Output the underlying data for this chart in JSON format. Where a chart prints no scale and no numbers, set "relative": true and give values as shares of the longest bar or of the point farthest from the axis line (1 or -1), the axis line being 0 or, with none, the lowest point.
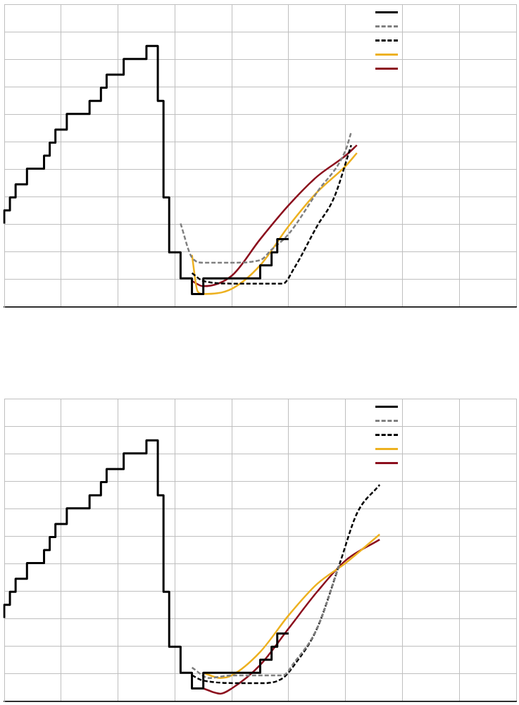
{
  "chart_data": [
    {
      "type": "line",
      "relative": true,
      "grid": true,
      "tick_labels": false,
      "categories": [
        null,
        null,
        null,
        null,
        null,
        null,
        null,
        null,
        null,
        null,
        null,
        null,
        null,
        null,
        null,
        null,
        null,
        null,
        null,
        null,
        null,
        null,
        null,
        null,
        null,
        null,
        null,
        null,
        null,
        null,
        null,
        null,
        null,
        null,
        null,
        null,
        null,
        null,
        null,
        null,
        null,
        null,
        null,
        null,
        null,
        null,
        null,
        null,
        null,
        null,
        null,
        null,
        null,
        null,
        null,
        null,
        null,
        null,
        null,
        null,
        null,
        null,
        null,
        null,
        null,
        null,
        null,
        null,
        null,
        null,
        null,
        null,
        null,
        null,
        null,
        null,
        null,
        null,
        null,
        null,
        null,
        null,
        null,
        null,
        null,
        null,
        null,
        null,
        null,
        null,
        null
      ],
      "series": [
        {
          "type": "step",
          "color": "#000000",
          "line_style": "solid",
          "values": [
            0.32,
            0.37,
            0.42,
            null,
            0.47,
            null,
            null,
            0.53,
            0.58,
            0.63,
            null,
            0.68,
            null,
            null,
            null,
            0.74,
            null,
            0.79,
            0.84,
            null,
            null,
            0.89,
            null,
            null,
            null,
            0.95,
            null,
            1,
            0.79,
            0.42,
            null,
            0.21,
            null,
            0.11,
            null,
            0.05,
            null,
            null,
            null,
            null,
            null,
            null,
            null,
            null,
            null,
            0.11,
            null,
            0.16,
            0.21,
            null,
            0.26,
            null,
            null,
            null,
            null,
            null,
            null,
            null,
            null,
            null,
            null,
            null,
            null,
            null,
            null,
            null,
            null,
            null,
            null,
            null,
            null,
            null,
            null,
            null,
            null,
            null,
            null,
            null,
            null,
            null,
            null,
            null,
            null,
            null,
            null,
            null,
            null,
            null,
            null,
            null,
            null
          ]
        },
        {
          "type": "line",
          "color": "#808080",
          "line_style": "dashed",
          "values": [
            null,
            null,
            null,
            null,
            null,
            null,
            null,
            null,
            null,
            null,
            null,
            null,
            null,
            null,
            null,
            null,
            null,
            null,
            null,
            null,
            null,
            null,
            null,
            null,
            null,
            null,
            null,
            null,
            null,
            null,
            null,
            0.32,
            null,
            0.19,
            null,
            0.17,
            null,
            null,
            null,
            null,
            0.17,
            null,
            null,
            null,
            null,
            0.18,
            null,
            0.22,
            null,
            null,
            0.28,
            null,
            null,
            null,
            null,
            0.44,
            null,
            null,
            null,
            null,
            0.6,
            0.67,
            null,
            null,
            null,
            null,
            null,
            null,
            null,
            null,
            null,
            null,
            null,
            null,
            null,
            null,
            null,
            null,
            null,
            null,
            null,
            null,
            null,
            null,
            null,
            null,
            null,
            null,
            null,
            null,
            null
          ]
        },
        {
          "type": "line",
          "color": "#000000",
          "line_style": "dashed",
          "values": [
            null,
            null,
            null,
            null,
            null,
            null,
            null,
            null,
            null,
            null,
            null,
            null,
            null,
            null,
            null,
            null,
            null,
            null,
            null,
            null,
            null,
            null,
            null,
            null,
            null,
            null,
            null,
            null,
            null,
            null,
            null,
            null,
            null,
            0.13,
            null,
            0.1,
            null,
            null,
            null,
            null,
            0.09,
            null,
            null,
            null,
            null,
            null,
            null,
            null,
            null,
            0.09,
            null,
            0.15,
            null,
            null,
            null,
            0.31,
            null,
            null,
            0.42,
            null,
            null,
            0.62,
            null,
            null,
            null,
            null,
            null,
            null,
            null,
            null,
            null,
            null,
            null,
            null,
            null,
            null,
            null,
            null,
            null,
            null,
            null,
            null,
            null,
            null,
            null,
            null,
            null,
            null,
            null,
            null,
            null
          ]
        },
        {
          "type": "line",
          "color": "#edb120",
          "line_style": "solid",
          "values": [
            null,
            null,
            null,
            null,
            null,
            null,
            null,
            null,
            null,
            null,
            null,
            null,
            null,
            null,
            null,
            null,
            null,
            null,
            null,
            null,
            null,
            null,
            null,
            null,
            null,
            null,
            null,
            null,
            null,
            null,
            null,
            null,
            null,
            0.2,
            0.06,
            0.05,
            null,
            null,
            null,
            null,
            0.07,
            null,
            null,
            null,
            null,
            0.16,
            null,
            null,
            null,
            null,
            0.31,
            null,
            null,
            null,
            null,
            0.44,
            null,
            null,
            null,
            null,
            0.54,
            null,
            0.59,
            null,
            null,
            null,
            null,
            null,
            null,
            null,
            null,
            null,
            null,
            null,
            null,
            null,
            null,
            null,
            null,
            null,
            null,
            null,
            null,
            null,
            null,
            null,
            null,
            null,
            null,
            null,
            null
          ]
        },
        {
          "type": "line",
          "color": "#8c0f1e",
          "line_style": "solid",
          "values": [
            null,
            null,
            null,
            null,
            null,
            null,
            null,
            null,
            null,
            null,
            null,
            null,
            null,
            null,
            null,
            null,
            null,
            null,
            null,
            null,
            null,
            null,
            null,
            null,
            null,
            null,
            null,
            null,
            null,
            null,
            null,
            null,
            null,
            0.1,
            null,
            0.08,
            null,
            null,
            null,
            null,
            0.12,
            null,
            null,
            null,
            null,
            0.26,
            null,
            null,
            null,
            null,
            0.39,
            null,
            null,
            null,
            null,
            0.5,
            null,
            null,
            null,
            null,
            0.58,
            null,
            0.62,
            null,
            null,
            null,
            null,
            null,
            null,
            null,
            null,
            null,
            null,
            null,
            null,
            null,
            null,
            null,
            null,
            null,
            null,
            null,
            null,
            null,
            null,
            null,
            null,
            null,
            null,
            null,
            null
          ]
        }
      ]
    },
    {
      "type": "line",
      "relative": true,
      "grid": true,
      "tick_labels": false,
      "categories": [
        null,
        null,
        null,
        null,
        null,
        null,
        null,
        null,
        null,
        null,
        null,
        null,
        null,
        null,
        null,
        null,
        null,
        null,
        null,
        null,
        null,
        null,
        null,
        null,
        null,
        null,
        null,
        null,
        null,
        null,
        null,
        null,
        null,
        null,
        null,
        null,
        null,
        null,
        null,
        null,
        null,
        null,
        null,
        null,
        null,
        null,
        null,
        null,
        null,
        null,
        null,
        null,
        null,
        null,
        null,
        null,
        null,
        null,
        null,
        null,
        null,
        null,
        null,
        null,
        null,
        null,
        null,
        null,
        null,
        null,
        null,
        null,
        null,
        null,
        null,
        null,
        null,
        null,
        null,
        null,
        null,
        null,
        null,
        null,
        null,
        null,
        null,
        null,
        null,
        null,
        null
      ],
      "series": [
        {
          "type": "step",
          "color": "#000000",
          "line_style": "solid",
          "values": [
            0.32,
            0.37,
            0.42,
            null,
            0.47,
            null,
            null,
            0.53,
            0.58,
            0.63,
            null,
            0.68,
            null,
            null,
            null,
            0.74,
            null,
            0.79,
            0.84,
            null,
            null,
            0.89,
            null,
            null,
            null,
            0.95,
            null,
            1,
            0.79,
            0.42,
            null,
            0.21,
            null,
            0.11,
            null,
            0.05,
            null,
            null,
            null,
            null,
            null,
            null,
            null,
            null,
            null,
            0.11,
            null,
            0.16,
            0.21,
            null,
            0.26,
            null,
            null,
            null,
            null,
            null,
            null,
            null,
            null,
            null,
            null,
            null,
            null,
            null,
            null,
            null,
            null,
            null,
            null,
            null,
            null,
            null,
            null,
            null,
            null,
            null,
            null,
            null,
            null,
            null,
            null,
            null,
            null,
            null,
            null,
            null,
            null,
            null,
            null,
            null,
            null
          ]
        },
        {
          "type": "line",
          "color": "#808080",
          "line_style": "dashed",
          "values": [
            null,
            null,
            null,
            null,
            null,
            null,
            null,
            null,
            null,
            null,
            null,
            null,
            null,
            null,
            null,
            null,
            null,
            null,
            null,
            null,
            null,
            null,
            null,
            null,
            null,
            null,
            null,
            null,
            null,
            null,
            null,
            null,
            null,
            0.13,
            null,
            null,
            0.09,
            null,
            null,
            null,
            0.1,
            null,
            null,
            null,
            null,
            null,
            null,
            null,
            null,
            0.1,
            null,
            0.15,
            null,
            null,
            null,
            0.28,
            null,
            null,
            null,
            0.53,
            null,
            null,
            null,
            null,
            null,
            null,
            null,
            null,
            null,
            null,
            null,
            null,
            null,
            null,
            null,
            null,
            null,
            null,
            null,
            null,
            null,
            null,
            null,
            null,
            null,
            null,
            null,
            null,
            null,
            null,
            null
          ]
        },
        {
          "type": "line",
          "color": "#000000",
          "line_style": "dashed",
          "values": [
            null,
            null,
            null,
            null,
            null,
            null,
            null,
            null,
            null,
            null,
            null,
            null,
            null,
            null,
            null,
            null,
            null,
            null,
            null,
            null,
            null,
            null,
            null,
            null,
            null,
            null,
            null,
            null,
            null,
            null,
            null,
            null,
            null,
            0.1,
            null,
            0.08,
            null,
            null,
            null,
            null,
            null,
            null,
            0.07,
            null,
            null,
            0.07,
            null,
            null,
            null,
            0.09,
            null,
            0.14,
            null,
            null,
            null,
            0.28,
            null,
            null,
            null,
            0.53,
            null,
            null,
            0.72,
            null,
            null,
            null,
            0.83,
            null,
            null,
            null,
            null,
            null,
            null,
            null,
            null,
            null,
            null,
            null,
            null,
            null,
            null,
            null,
            null,
            null,
            null,
            null,
            null,
            null,
            null,
            null,
            null
          ]
        },
        {
          "type": "line",
          "color": "#edb120",
          "line_style": "solid",
          "values": [
            null,
            null,
            null,
            null,
            null,
            null,
            null,
            null,
            null,
            null,
            null,
            null,
            null,
            null,
            null,
            null,
            null,
            null,
            null,
            null,
            null,
            null,
            null,
            null,
            null,
            null,
            null,
            null,
            null,
            null,
            null,
            null,
            null,
            null,
            null,
            0.11,
            null,
            null,
            0.09,
            null,
            0.1,
            null,
            null,
            null,
            null,
            0.19,
            null,
            null,
            null,
            null,
            0.33,
            null,
            null,
            null,
            null,
            0.45,
            null,
            null,
            null,
            null,
            0.53,
            null,
            null,
            null,
            null,
            null,
            0.64,
            null,
            null,
            null,
            null,
            null,
            null,
            null,
            null,
            null,
            null,
            null,
            null,
            null,
            null,
            null,
            null,
            null,
            null,
            null,
            null,
            null,
            null,
            null,
            null
          ]
        },
        {
          "type": "line",
          "color": "#8c0f1e",
          "line_style": "solid",
          "values": [
            null,
            null,
            null,
            null,
            null,
            null,
            null,
            null,
            null,
            null,
            null,
            null,
            null,
            null,
            null,
            null,
            null,
            null,
            null,
            null,
            null,
            null,
            null,
            null,
            null,
            null,
            null,
            null,
            null,
            null,
            null,
            null,
            null,
            null,
            null,
            0.05,
            null,
            null,
            0.03,
            null,
            0.05,
            null,
            null,
            null,
            null,
            0.14,
            null,
            null,
            null,
            null,
            0.28,
            null,
            null,
            null,
            null,
            0.42,
            null,
            null,
            null,
            null,
            0.54,
            null,
            null,
            null,
            null,
            null,
            0.62,
            null,
            null,
            null,
            null,
            null,
            null,
            null,
            null,
            null,
            null,
            null,
            null,
            null,
            null,
            null,
            null,
            null,
            null,
            null,
            null,
            null,
            null,
            null,
            null
          ]
        }
      ]
    }
  ]
}
